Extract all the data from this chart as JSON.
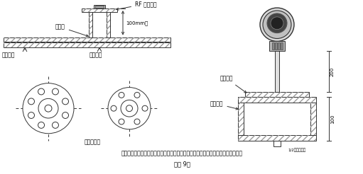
{
  "caption_line1": "插入式流量计短管制作、安装示意图，根据流量计算采用不同的法兰及短管公称直径",
  "caption_line2": "（图 9）",
  "label_rf": "RF 配套法兰",
  "label_100mm": "100mm高",
  "label_weld_point": "焊接点",
  "label_pipe": "工艺管道",
  "label_weld_tube": "焊接短管",
  "label_center": "管道中心线",
  "label_fitting_tube": "配套短管",
  "label_pipe_wall": "管道外壁",
  "label_200": "200",
  "label_100": "100",
  "label_half": "1/2量量管外径",
  "lc": "#333333",
  "hc": "#999999"
}
